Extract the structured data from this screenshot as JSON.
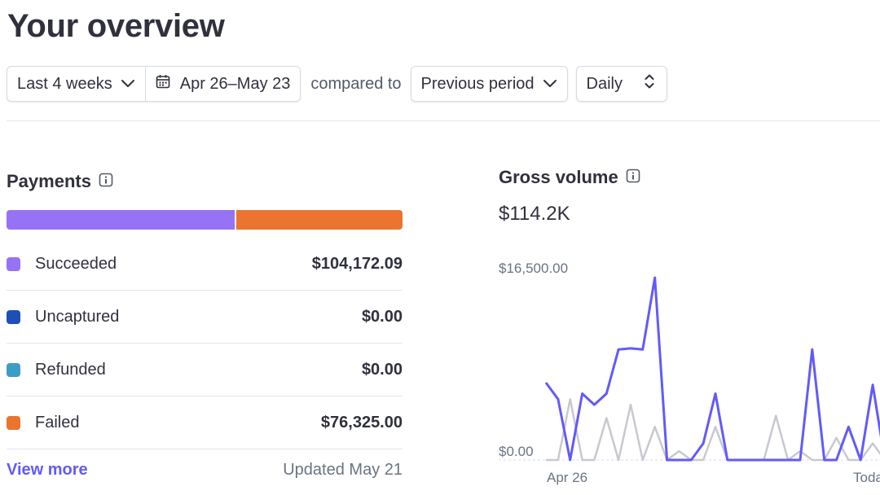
{
  "page": {
    "title": "Your overview"
  },
  "filters": {
    "range_label": "Last 4 weeks",
    "date_label": "Apr 26–May 23",
    "compared_label": "compared to",
    "comparison_label": "Previous period",
    "interval_label": "Daily"
  },
  "payments": {
    "title": "Payments",
    "rows": [
      {
        "label": "Succeeded",
        "value": "$104,172.09",
        "color": "#9672f6"
      },
      {
        "label": "Uncaptured",
        "value": "$0.00",
        "color": "#1d4fb5"
      },
      {
        "label": "Refunded",
        "value": "$0.00",
        "color": "#3c9dc9"
      },
      {
        "label": "Failed",
        "value": "$76,325.00",
        "color": "#eb7430"
      }
    ],
    "view_more": "View more",
    "updated": "Updated May 21"
  },
  "gross_volume": {
    "title": "Gross volume",
    "total": "$114.2K"
  },
  "chart_data": {
    "type": "line",
    "y_max_label": "$16,500.00",
    "y_min_label": "$0.00",
    "x_start_label": "Apr 26",
    "x_end_label": "Toda",
    "ylim": [
      0,
      16500
    ],
    "series": [
      {
        "color": "#625afa",
        "values": [
          7000,
          5500,
          0,
          6000,
          5000,
          6000,
          10000,
          10100,
          10000,
          16500,
          0,
          0,
          0,
          1500,
          6000,
          0,
          0,
          0,
          0,
          0,
          0,
          0,
          10000,
          0,
          0,
          3000,
          0,
          6800,
          0
        ]
      },
      {
        "color": "#c7c9cf",
        "values": [
          0,
          0,
          5500,
          0,
          0,
          3800,
          0,
          5000,
          0,
          3000,
          0,
          800,
          0,
          0,
          3000,
          0,
          0,
          0,
          0,
          4000,
          0,
          800,
          0,
          0,
          2000,
          0,
          0,
          1500,
          0
        ]
      }
    ]
  }
}
